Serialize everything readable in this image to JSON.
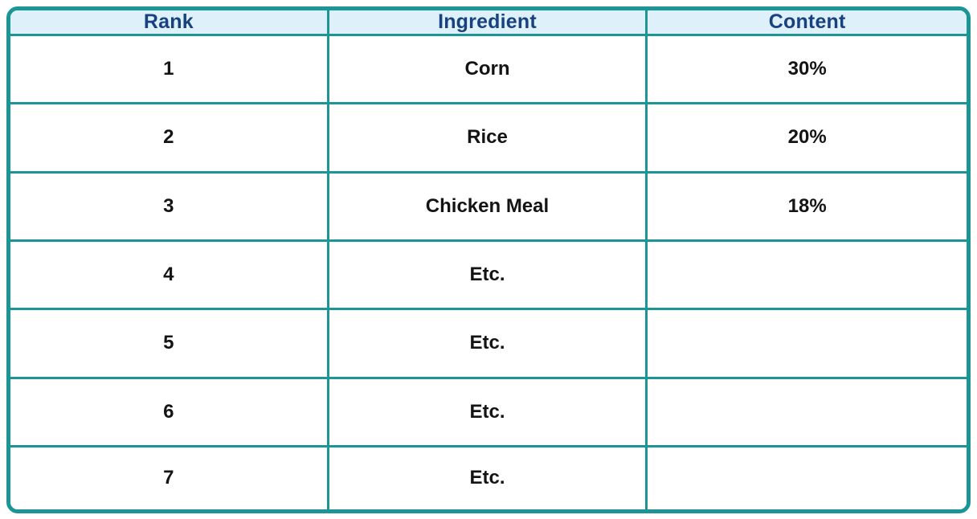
{
  "chart_data": {
    "type": "table",
    "title": "",
    "columns": [
      "Rank",
      "Ingredient",
      "Content"
    ],
    "rows": [
      [
        "1",
        "Corn",
        "30%"
      ],
      [
        "2",
        "Rice",
        "20%"
      ],
      [
        "3",
        "Chicken Meal",
        "18%"
      ],
      [
        "4",
        "Etc.",
        ""
      ],
      [
        "5",
        "Etc.",
        ""
      ],
      [
        "6",
        "Etc.",
        ""
      ],
      [
        "7",
        "Etc.",
        ""
      ]
    ],
    "layout": {
      "grid": "on",
      "header_row": true,
      "column_alignment": "center"
    }
  },
  "colors": {
    "border": "#1d9596",
    "header_background": "#def1fb",
    "header_text": "#17417f",
    "body_text": "#141414",
    "page_background": "#ffffff"
  }
}
